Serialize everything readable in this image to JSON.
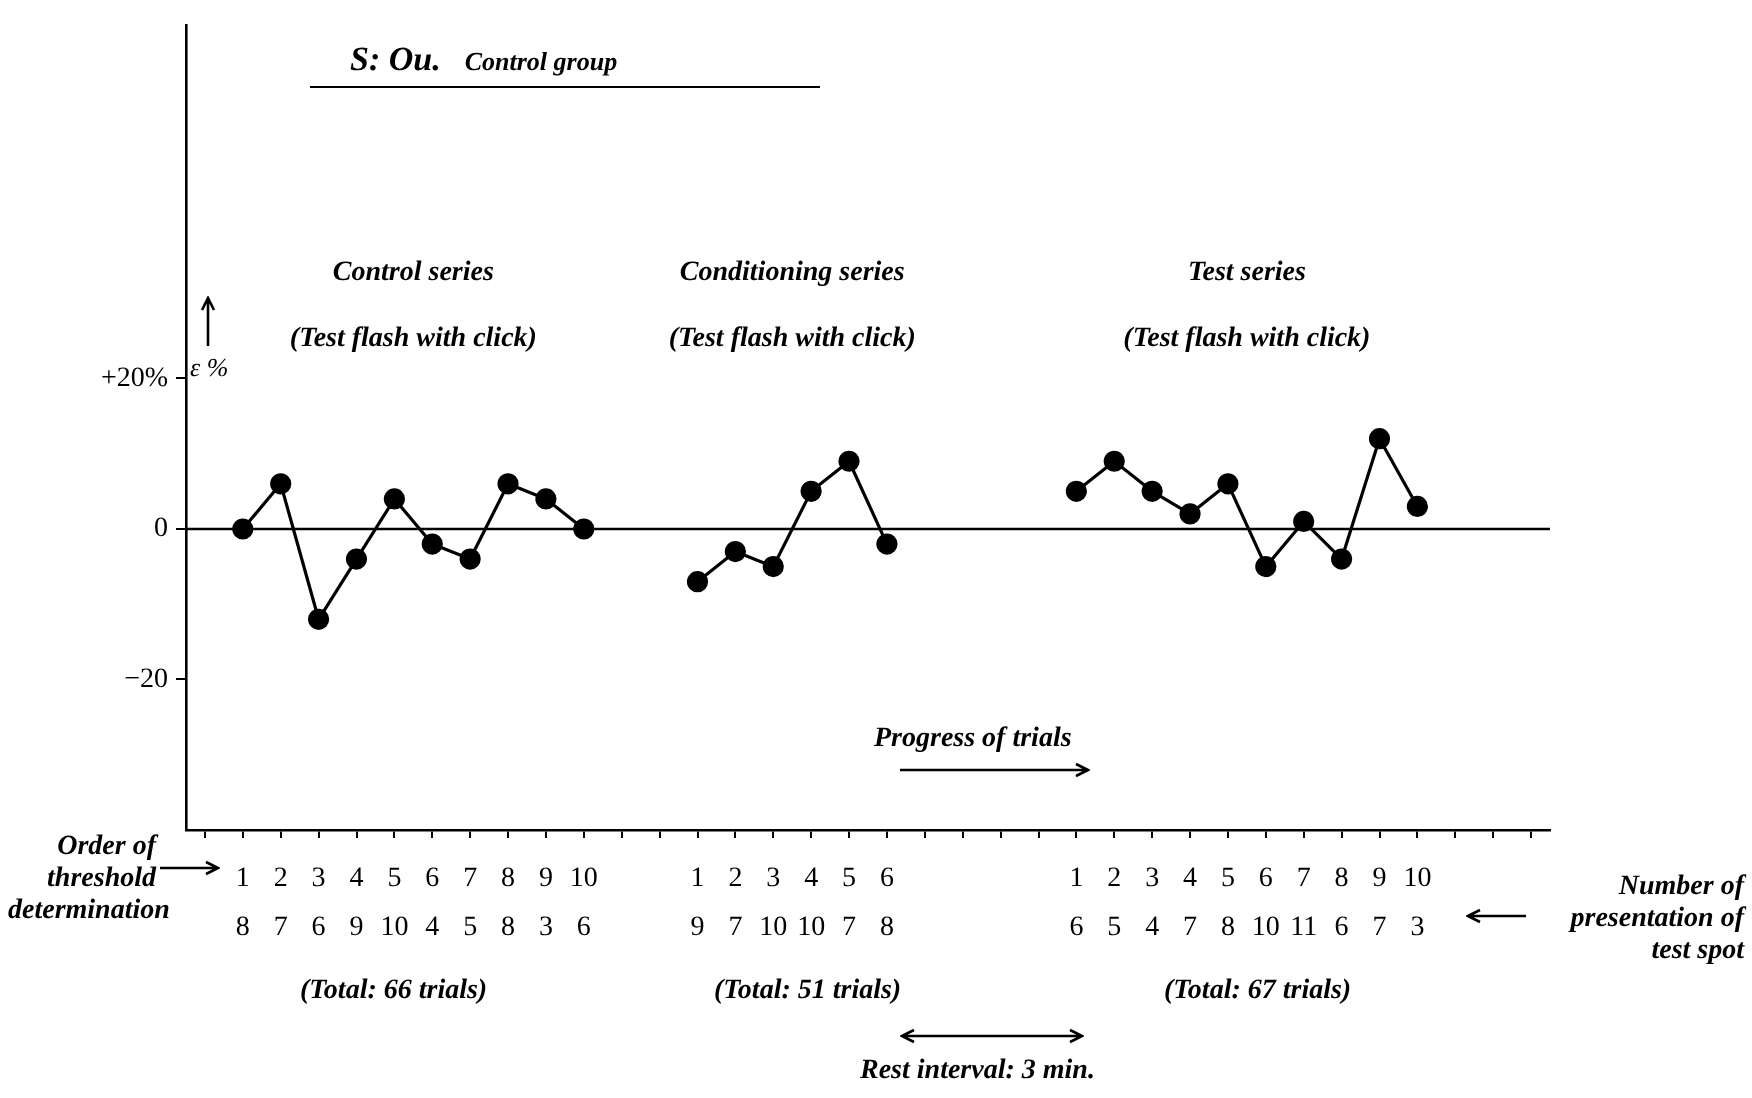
{
  "chart_data": {
    "type": "line",
    "title": "S: Ou.",
    "subtitle": "Control group",
    "xlabel": "Progress of trials",
    "ylabel": "ε %",
    "categories": [
      null,
      "1\n8",
      "2\n7",
      "3\n6",
      "4\n9",
      "5\n10",
      "6\n4",
      "7\n5",
      "8\n8",
      "9\n3",
      "10\n6",
      null,
      null,
      "1\n9",
      "2\n7",
      "3\n10",
      "4\n10",
      "5\n7",
      "6\n8",
      null,
      null,
      null,
      null,
      "1\n6",
      "2\n5",
      "3\n4",
      "4\n7",
      "5\n8",
      "6\n10",
      "7\n11",
      "8\n6",
      "9\n7",
      "10\n3",
      null,
      null,
      null
    ],
    "series": [
      {
        "name": "Control series\n(Test flash with click)",
        "color": "#000000",
        "values": [
          null,
          0,
          6,
          -12,
          -4,
          4,
          -2,
          -4,
          6,
          4,
          0,
          null,
          null,
          null,
          null,
          null,
          null,
          null,
          null,
          null,
          null,
          null,
          null,
          null,
          null,
          null,
          null,
          null,
          null,
          null,
          null,
          null,
          null,
          null,
          null,
          null
        ]
      },
      {
        "name": "Conditioning series\n(Test flash with click)",
        "color": "#000000",
        "values": [
          null,
          null,
          null,
          null,
          null,
          null,
          null,
          null,
          null,
          null,
          null,
          null,
          null,
          -7,
          -3,
          -5,
          5,
          9,
          -2,
          null,
          null,
          null,
          null,
          null,
          null,
          null,
          null,
          null,
          null,
          null,
          null,
          null,
          null,
          null,
          null,
          null
        ]
      },
      {
        "name": "Test series\n(Test flash with click)",
        "color": "#000000",
        "values": [
          null,
          null,
          null,
          null,
          null,
          null,
          null,
          null,
          null,
          null,
          null,
          null,
          null,
          null,
          null,
          null,
          null,
          null,
          null,
          null,
          null,
          null,
          null,
          5,
          9,
          5,
          2,
          6,
          -5,
          1,
          -4,
          12,
          3,
          null,
          null,
          null
        ]
      }
    ],
    "ylim": [
      -40,
      67
    ],
    "yticks": [
      {
        "value": 20,
        "label": "+20%"
      },
      0,
      {
        "value": -20,
        "label": "−20"
      }
    ],
    "ref_lines": [
      {
        "axis": "y",
        "value": 0,
        "color": "#000000"
      }
    ],
    "marker": "circle",
    "line_style": "solid",
    "annotations": [
      "Order of threshold determination",
      "Number of presentation of test spot",
      "(Total: 66 trials)",
      "(Total: 51 trials)",
      "(Total: 67 trials)",
      "Rest interval: 3 min."
    ]
  }
}
